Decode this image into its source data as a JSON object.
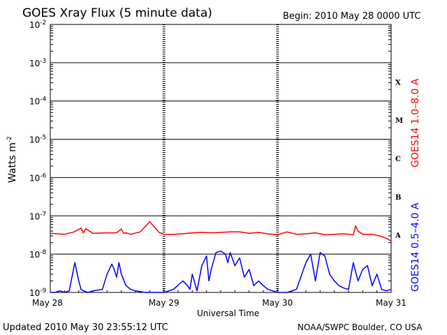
{
  "header": {
    "title": "GOES Xray Flux (5 minute data)",
    "begin": "Begin:  2010 May 28 0000 UTC"
  },
  "footer": {
    "updated": "Updated 2010 May 30 23:55:12 UTC",
    "credit": "NOAA/SWPC Boulder, CO USA"
  },
  "colors": {
    "long_channel": "#ff0000",
    "short_channel": "#0000ff",
    "axes": "#000000",
    "background": "#ffffff"
  },
  "chart_data": {
    "type": "line",
    "title": "GOES Xray Flux (5 minute data)",
    "xlabel": "Universal Time",
    "ylabel": "Watts m",
    "ylabel_superscript": "-2",
    "y_scale": "log",
    "ylim": [
      1e-09,
      0.01
    ],
    "y_ticks": [
      {
        "base": "10",
        "exp": "-2"
      },
      {
        "base": "10",
        "exp": "-3"
      },
      {
        "base": "10",
        "exp": "-4"
      },
      {
        "base": "10",
        "exp": "-5"
      },
      {
        "base": "10",
        "exp": "-6"
      },
      {
        "base": "10",
        "exp": "-7"
      },
      {
        "base": "10",
        "exp": "-8"
      },
      {
        "base": "10",
        "exp": "-9"
      }
    ],
    "x_ticks": [
      "May 28",
      "May 29",
      "May 30",
      "May 31"
    ],
    "xlim_hours": [
      0,
      72
    ],
    "flare_classes": [
      "X",
      "M",
      "C",
      "B",
      "A"
    ],
    "series": [
      {
        "name": "GOES14 1.0–8.0 A",
        "color": "#ff0000",
        "x_hours": [
          0,
          3,
          5,
          6.5,
          7,
          7.5,
          9,
          12,
          14,
          15,
          15.5,
          16,
          17,
          19,
          21,
          23,
          24,
          26,
          28,
          30,
          32,
          34,
          36,
          38,
          40,
          42,
          44,
          46,
          48,
          50,
          52,
          54,
          56,
          58,
          60,
          62,
          64,
          64.5,
          65,
          66,
          68,
          70,
          71,
          72
        ],
        "values": [
          3.5e-08,
          3.3e-08,
          3.8e-08,
          4.8e-08,
          3.6e-08,
          4.6e-08,
          3.5e-08,
          3.6e-08,
          3.6e-08,
          4.5e-08,
          3.5e-08,
          3.6e-08,
          3.3e-08,
          3.8e-08,
          7e-08,
          3.7e-08,
          3.3e-08,
          3.3e-08,
          3.4e-08,
          3.6e-08,
          3.7e-08,
          3.6e-08,
          3.7e-08,
          3.8e-08,
          3.8e-08,
          3.5e-08,
          3.7e-08,
          3.4e-08,
          3.2e-08,
          3.8e-08,
          3.3e-08,
          3.4e-08,
          3.6e-08,
          3.2e-08,
          3.3e-08,
          3.4e-08,
          3.2e-08,
          5.5e-08,
          4e-08,
          3.3e-08,
          3.3e-08,
          2.9e-08,
          2.6e-08,
          2.2e-08
        ]
      },
      {
        "name": "GOES14 0.5–4.0 A",
        "color": "#0000ff",
        "x_hours": [
          0,
          1,
          2,
          3,
          4,
          5.2,
          5.5,
          6,
          6.5,
          7,
          8,
          9,
          11,
          12,
          13,
          13.5,
          14,
          14.5,
          15,
          16,
          17,
          18,
          20,
          22,
          24,
          26,
          28,
          29,
          29.5,
          30,
          31,
          32,
          33,
          33.5,
          34,
          35,
          36,
          37,
          37.5,
          38,
          39,
          40,
          41,
          42,
          43,
          44,
          45,
          46,
          48,
          50,
          52,
          54,
          55,
          56,
          57,
          58,
          59,
          60,
          61,
          62,
          63,
          64,
          65,
          66,
          67,
          68,
          69,
          70,
          71,
          72
        ],
        "values": [
          1e-09,
          1e-09,
          1.1e-09,
          1e-09,
          1.1e-09,
          6e-09,
          4e-09,
          2e-09,
          1.2e-09,
          1.1e-09,
          1e-09,
          1.1e-09,
          1.2e-09,
          3e-09,
          5.5e-09,
          4e-09,
          2.5e-09,
          6e-09,
          3e-09,
          1.5e-09,
          1.2e-09,
          1.1e-09,
          1e-09,
          1e-09,
          1e-09,
          1.2e-09,
          2e-09,
          1.5e-09,
          1.2e-09,
          3e-09,
          1.1e-09,
          5e-09,
          9e-09,
          2e-09,
          4e-09,
          1.1e-08,
          1.2e-08,
          1e-08,
          6e-09,
          1.1e-08,
          5e-09,
          8e-09,
          2.5e-09,
          4e-09,
          1.5e-09,
          2e-09,
          1.5e-09,
          1.2e-09,
          1e-09,
          1e-09,
          1.2e-09,
          6e-09,
          1e-08,
          2e-09,
          1.1e-08,
          9e-09,
          3e-09,
          2e-09,
          1.5e-09,
          1.3e-09,
          1.2e-09,
          6e-09,
          2e-09,
          4e-09,
          5e-09,
          1.5e-09,
          3e-09,
          1.2e-09,
          1.1e-09,
          1.2e-09
        ]
      }
    ]
  }
}
